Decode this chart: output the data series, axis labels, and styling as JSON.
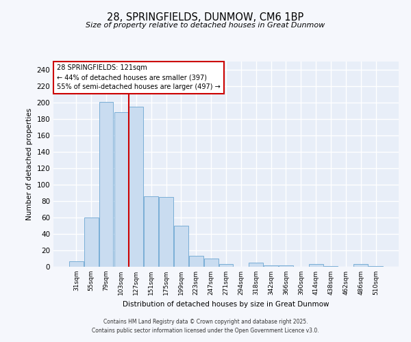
{
  "title": "28, SPRINGFIELDS, DUNMOW, CM6 1BP",
  "subtitle": "Size of property relative to detached houses in Great Dunmow",
  "xlabel": "Distribution of detached houses by size in Great Dunmow",
  "ylabel": "Number of detached properties",
  "bar_color": "#c9dcf0",
  "bar_edge_color": "#7aaed6",
  "background_color": "#e8eef8",
  "grid_color": "#ffffff",
  "fig_background": "#f5f7fc",
  "categories": [
    "31sqm",
    "55sqm",
    "79sqm",
    "103sqm",
    "127sqm",
    "151sqm",
    "175sqm",
    "199sqm",
    "223sqm",
    "247sqm",
    "271sqm",
    "294sqm",
    "318sqm",
    "342sqm",
    "366sqm",
    "390sqm",
    "414sqm",
    "438sqm",
    "462sqm",
    "486sqm",
    "510sqm"
  ],
  "values": [
    7,
    60,
    201,
    188,
    195,
    86,
    85,
    50,
    13,
    10,
    3,
    0,
    5,
    2,
    2,
    0,
    3,
    1,
    0,
    3,
    1
  ],
  "ylim": [
    0,
    250
  ],
  "yticks": [
    0,
    20,
    40,
    60,
    80,
    100,
    120,
    140,
    160,
    180,
    200,
    220,
    240
  ],
  "vline_color": "#cc0000",
  "annotation_title": "28 SPRINGFIELDS: 121sqm",
  "annotation_line2": "← 44% of detached houses are smaller (397)",
  "annotation_line3": "55% of semi-detached houses are larger (497) →",
  "annotation_box_color": "#ffffff",
  "annotation_box_edge": "#cc0000",
  "footer_line1": "Contains HM Land Registry data © Crown copyright and database right 2025.",
  "footer_line2": "Contains public sector information licensed under the Open Government Licence v3.0."
}
